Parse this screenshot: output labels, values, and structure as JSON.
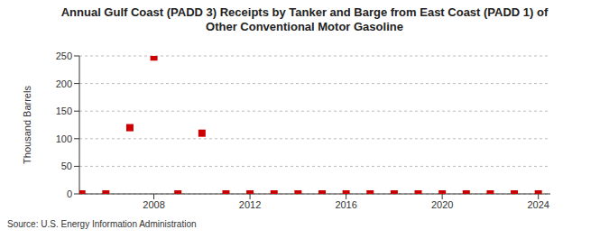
{
  "chart_data": {
    "type": "scatter",
    "title": "Annual Gulf Coast (PADD 3) Receipts by Tanker and Barge from East Coast (PADD 1) of Other Conventional Motor Gasoline",
    "y_label": "Thousand Barrels",
    "source": "Source: U.S. Energy Information Administration",
    "x": [
      2005,
      2006,
      2007,
      2008,
      2009,
      2010,
      2011,
      2012,
      2013,
      2014,
      2015,
      2016,
      2017,
      2018,
      2019,
      2020,
      2021,
      2022,
      2023,
      2024
    ],
    "values": [
      0,
      0,
      120,
      248,
      0,
      110,
      0,
      0,
      0,
      0,
      0,
      0,
      0,
      0,
      0,
      0,
      0,
      0,
      0,
      0
    ],
    "color": "#cc0000",
    "marker": "square",
    "xlim": [
      2004.9,
      2024.5
    ],
    "xticks": [
      2008,
      2012,
      2016,
      2020,
      2024
    ],
    "ylim": [
      0,
      250
    ],
    "yticks": [
      0,
      50,
      100,
      150,
      200,
      250
    ],
    "grid": true
  }
}
